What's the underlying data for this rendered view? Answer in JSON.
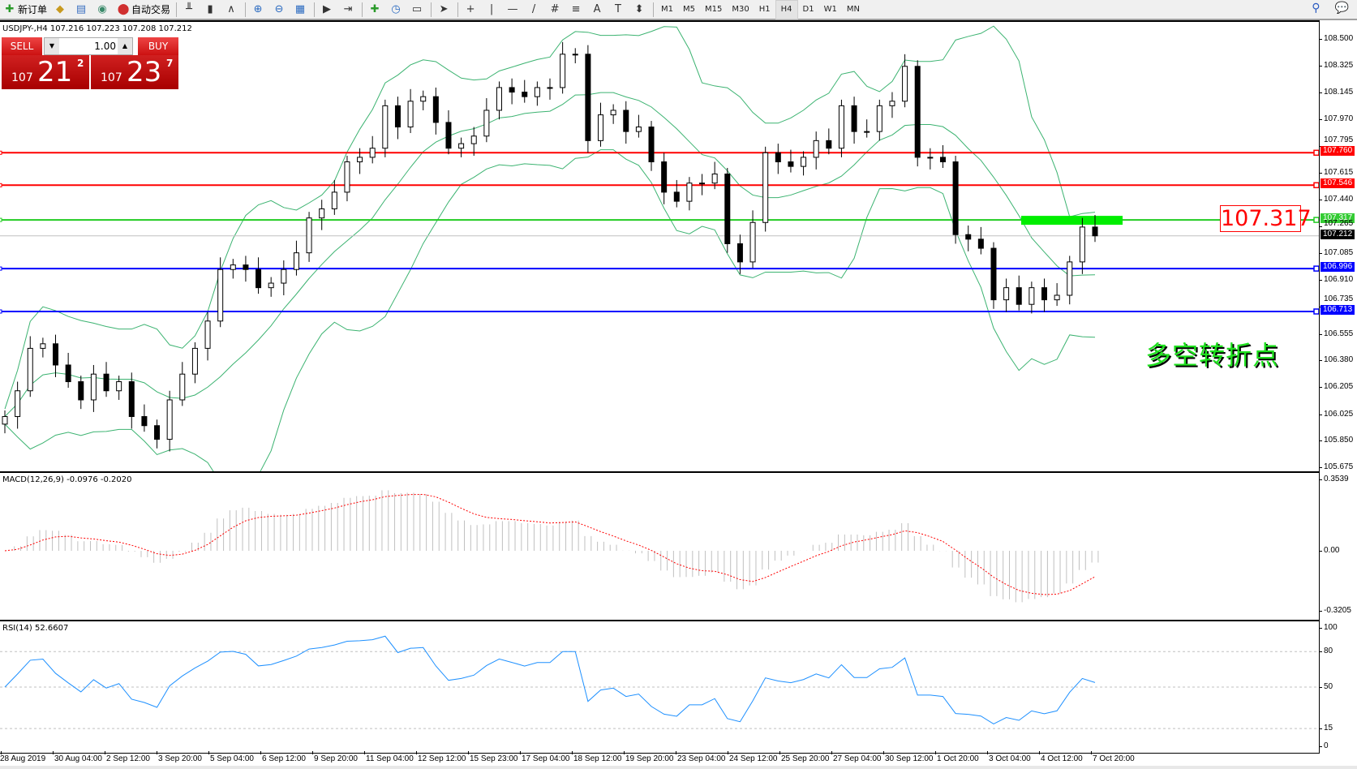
{
  "toolbar": {
    "items": [
      {
        "icon": "new-order-icon",
        "label": "新订单"
      },
      {
        "icon": "history-center-icon",
        "label": ""
      },
      {
        "icon": "terminal-icon",
        "label": ""
      },
      {
        "icon": "signals-icon",
        "label": ""
      },
      {
        "icon": "auto-trading-icon",
        "label": "自动交易"
      }
    ],
    "chart_tools": [
      "bar-chart-icon",
      "candlestick-icon",
      "line-chart-icon",
      "zoom-in-icon",
      "zoom-out-icon",
      "tile-windows-icon",
      "auto-scroll-icon",
      "chart-shift-icon",
      "indicators-icon",
      "periods-icon",
      "templates-icon",
      "cursor-icon",
      "crosshair-icon",
      "vertical-line-icon",
      "horizontal-line-icon",
      "trendline-icon",
      "equidistant-channel-icon",
      "fibonacci-icon",
      "text-icon",
      "text-label-icon",
      "arrows-icon"
    ],
    "timeframes": [
      "M1",
      "M5",
      "M15",
      "M30",
      "H1",
      "H4",
      "D1",
      "W1",
      "MN"
    ],
    "active_timeframe": "H4"
  },
  "chart": {
    "title": "USDJPY-,H4  107.216 107.223 107.208 107.212",
    "sell_label": "SELL",
    "buy_label": "BUY",
    "lot": "1.00",
    "sell_price": {
      "prefix": "107",
      "big": "21",
      "sup": "2"
    },
    "buy_price": {
      "prefix": "107",
      "big": "23",
      "sup": "7"
    },
    "level_label": "107.317",
    "annotation": "多空转折点",
    "macd_title": "MACD(12,26,9) -0.0976 -0.2020",
    "rsi_title": "RSI(14) 52.6607"
  },
  "chart_data": {
    "type": "candlestick",
    "symbol": "USDJPY-",
    "timeframe": "H4",
    "ylim": [
      105.675,
      108.5
    ],
    "price_ticks": [
      "108.500",
      "108.325",
      "108.145",
      "107.970",
      "107.795",
      "107.615",
      "107.440",
      "107.265",
      "107.085",
      "106.910",
      "106.735",
      "106.555",
      "106.380",
      "106.205",
      "106.025",
      "105.850",
      "105.675"
    ],
    "closes": [
      106.02,
      106.19,
      106.47,
      106.5,
      106.36,
      106.25,
      106.13,
      106.3,
      106.19,
      106.25,
      106.02,
      105.96,
      105.87,
      106.13,
      106.3,
      106.47,
      106.65,
      106.99,
      107.02,
      106.99,
      106.87,
      106.9,
      106.99,
      107.1,
      107.33,
      107.39,
      107.5,
      107.7,
      107.73,
      107.79,
      108.07,
      107.93,
      108.1,
      108.13,
      107.96,
      107.79,
      107.82,
      107.87,
      108.04,
      108.19,
      108.16,
      108.13,
      108.19,
      108.19,
      108.41,
      108.41,
      107.84,
      108.01,
      108.04,
      107.9,
      107.93,
      107.7,
      107.5,
      107.44,
      107.56,
      107.56,
      107.62,
      107.16,
      107.04,
      107.3,
      107.76,
      107.7,
      107.67,
      107.73,
      107.84,
      107.79,
      108.07,
      107.9,
      107.9,
      108.07,
      108.1,
      108.33,
      107.73,
      107.73,
      107.7,
      107.22,
      107.19,
      107.13,
      106.79,
      106.87,
      106.76,
      106.87,
      106.79,
      106.82,
      107.04,
      107.27,
      107.212
    ],
    "horizontal_lines": [
      {
        "price": 107.76,
        "label": "107.760",
        "color": "#ff0000"
      },
      {
        "price": 107.546,
        "label": "107.546",
        "color": "#ff0000"
      },
      {
        "price": 107.317,
        "label": "107.317",
        "color": "#22cc22"
      },
      {
        "price": 106.996,
        "label": "106.996",
        "color": "#0000ff"
      },
      {
        "price": 106.713,
        "label": "106.713",
        "color": "#0000ff"
      }
    ],
    "current_price": {
      "price": 107.212,
      "label": "107.212"
    },
    "indicators": {
      "bollinger_color": "#3cb371",
      "macd_signal_color": "#ff0000",
      "macd_hist_color": "#c0c0c0",
      "rsi_color": "#1e90ff"
    },
    "macd_ticks": [
      "0.3539",
      "0.00",
      "-0.3205"
    ],
    "rsi_ticks": [
      "100",
      "80",
      "50",
      "15",
      "0"
    ],
    "time_ticks": [
      "28 Aug 2019",
      "30 Aug 04:00",
      "2 Sep 12:00",
      "3 Sep 20:00",
      "5 Sep 04:00",
      "6 Sep 12:00",
      "9 Sep 20:00",
      "11 Sep 04:00",
      "12 Sep 12:00",
      "15 Sep 23:00",
      "17 Sep 04:00",
      "18 Sep 12:00",
      "19 Sep 20:00",
      "23 Sep 04:00",
      "24 Sep 12:00",
      "25 Sep 20:00",
      "27 Sep 04:00",
      "30 Sep 12:00",
      "1 Oct 20:00",
      "3 Oct 04:00",
      "4 Oct 12:00",
      "7 Oct 20:00"
    ]
  }
}
